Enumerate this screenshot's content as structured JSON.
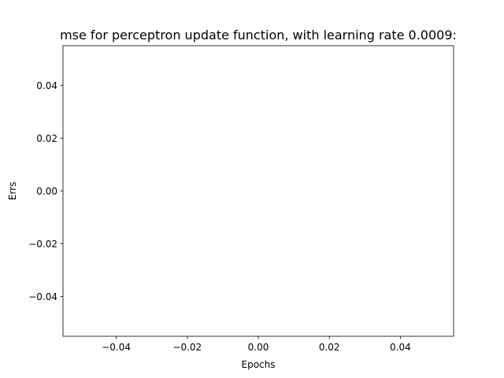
{
  "chart_data": {
    "type": "line",
    "title": "mse for perceptron update function, with learning rate 0.0009:",
    "xlabel": "Epochs",
    "ylabel": "Errs",
    "xlim": [
      -0.055,
      0.055
    ],
    "ylim": [
      -0.055,
      0.055
    ],
    "grid": false,
    "x_ticks": [
      {
        "value": -0.04,
        "label": "−0.04"
      },
      {
        "value": -0.02,
        "label": "−0.02"
      },
      {
        "value": 0.0,
        "label": "0.00"
      },
      {
        "value": 0.02,
        "label": "0.02"
      },
      {
        "value": 0.04,
        "label": "0.04"
      }
    ],
    "y_ticks": [
      {
        "value": 0.04,
        "label": "0.04"
      },
      {
        "value": 0.02,
        "label": "0.02"
      },
      {
        "value": 0.0,
        "label": "0.00"
      },
      {
        "value": -0.02,
        "label": "−0.02"
      },
      {
        "value": -0.04,
        "label": "−0.04"
      }
    ],
    "series": [
      {
        "x": [],
        "y": []
      }
    ]
  }
}
